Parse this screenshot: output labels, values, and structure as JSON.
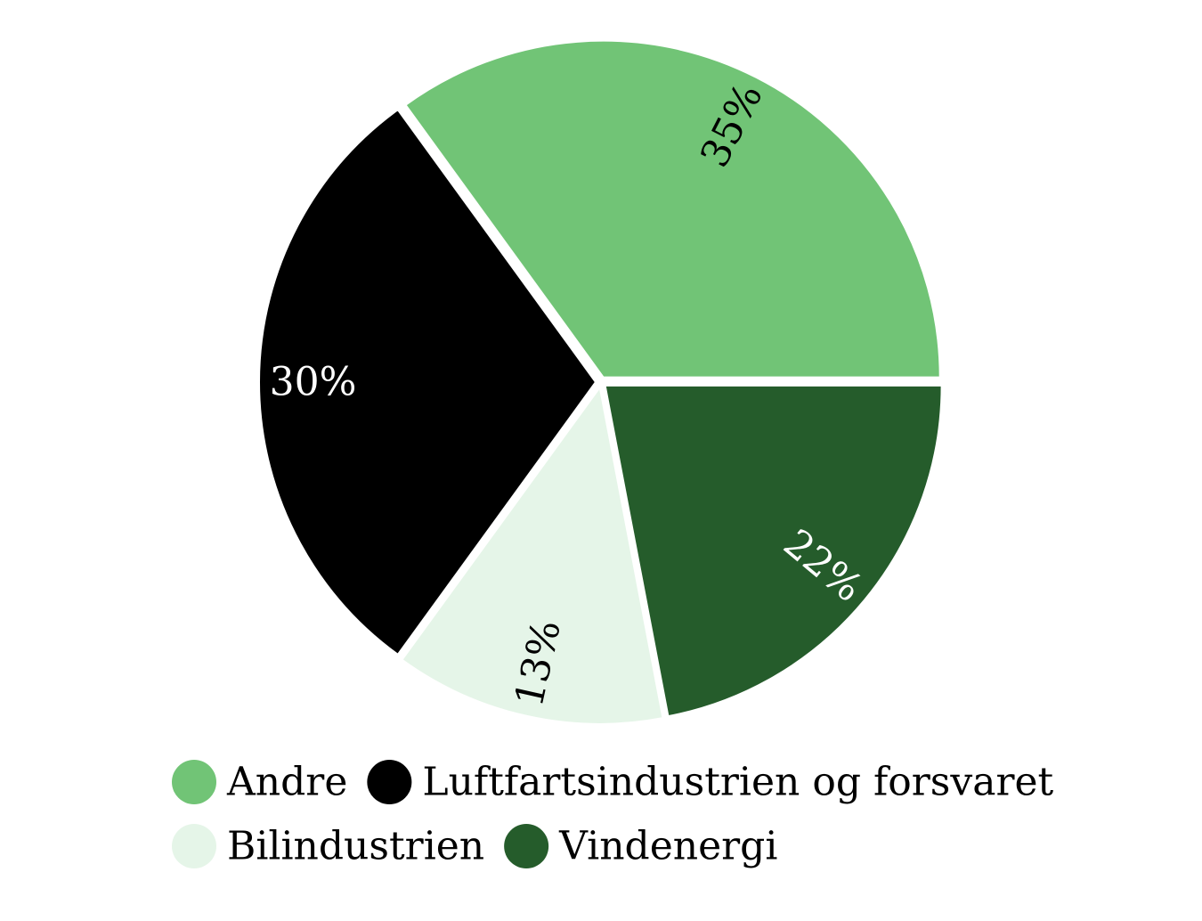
{
  "chart_data": {
    "type": "pie",
    "slices": [
      {
        "name": "Andre",
        "value": 35,
        "label": "35%",
        "color": "#71c476",
        "label_color": "#000000"
      },
      {
        "name": "Luftfartsindustrien og forsvaret",
        "value": 30,
        "label": "30%",
        "color": "#000000",
        "label_color": "#ffffff"
      },
      {
        "name": "Bilindustrien",
        "value": 13,
        "label": "13%",
        "color": "#e5f5e8",
        "label_color": "#000000"
      },
      {
        "name": "Vindenergi",
        "value": 22,
        "label": "22%",
        "color": "#255c2b",
        "label_color": "#ffffff"
      }
    ],
    "start_angle_deg": 0,
    "direction": "counterclockwise",
    "legend_placement": "bottom"
  }
}
